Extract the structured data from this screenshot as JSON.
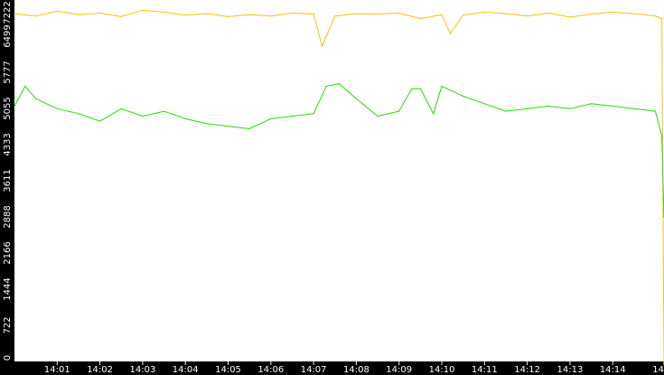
{
  "chart_data": {
    "type": "line",
    "title": "",
    "xlabel": "",
    "ylabel": "",
    "x_range_minutes": [
      0,
      15.2
    ],
    "ylim": [
      0,
      7222
    ],
    "x_ticks": [
      {
        "label": "14:01",
        "at": 1
      },
      {
        "label": "14:02",
        "at": 2
      },
      {
        "label": "14:03",
        "at": 3
      },
      {
        "label": "14:04",
        "at": 4
      },
      {
        "label": "14:05",
        "at": 5
      },
      {
        "label": "14:06",
        "at": 6
      },
      {
        "label": "14:07",
        "at": 7
      },
      {
        "label": "14:08",
        "at": 8
      },
      {
        "label": "14:09",
        "at": 9
      },
      {
        "label": "14:10",
        "at": 10
      },
      {
        "label": "14:11",
        "at": 11
      },
      {
        "label": "14:12",
        "at": 12
      },
      {
        "label": "14:13",
        "at": 13
      },
      {
        "label": "14:14",
        "at": 14
      },
      {
        "label": "14",
        "at": 15.2
      }
    ],
    "y_ticks": [
      0,
      722,
      1444,
      2166,
      2888,
      3611,
      4333,
      5055,
      5777,
      6499,
      7222
    ],
    "grid": false,
    "legend": "none",
    "series": [
      {
        "color": "#ffc000",
        "x": [
          0,
          0.5,
          1,
          1.5,
          2,
          2.5,
          3,
          3.5,
          4,
          4.5,
          5,
          5.5,
          6,
          6.5,
          7,
          7.2,
          7.5,
          8,
          8.5,
          9,
          9.5,
          10,
          10.2,
          10.5,
          11,
          11.5,
          12,
          12.5,
          13,
          13.5,
          14,
          14.5,
          15,
          15.15,
          15.2
        ],
        "y": [
          6950,
          6900,
          7000,
          6930,
          6960,
          6890,
          7020,
          6980,
          6920,
          6950,
          6890,
          6930,
          6900,
          6960,
          6940,
          6300,
          6900,
          6950,
          6940,
          6960,
          6850,
          6930,
          6550,
          6920,
          6980,
          6950,
          6900,
          6960,
          6880,
          6940,
          6980,
          6950,
          6900,
          6850,
          0
        ]
      },
      {
        "color": "#22dd00",
        "x": [
          0,
          0.25,
          0.5,
          1,
          1.5,
          2,
          2.5,
          3,
          3.5,
          4,
          4.5,
          5,
          5.5,
          6,
          6.5,
          7,
          7.3,
          7.6,
          8,
          8.5,
          9,
          9.3,
          9.5,
          9.8,
          10,
          10.5,
          11,
          11.5,
          12,
          12.5,
          13,
          13.5,
          14,
          14.5,
          15,
          15.15,
          15.2
        ],
        "y": [
          5100,
          5500,
          5250,
          5050,
          4950,
          4800,
          5050,
          4900,
          5000,
          4850,
          4750,
          4700,
          4650,
          4850,
          4900,
          4950,
          5500,
          5550,
          5250,
          4900,
          5000,
          5450,
          5450,
          4950,
          5500,
          5300,
          5150,
          5000,
          5050,
          5100,
          5050,
          5150,
          5100,
          5050,
          5000,
          4500,
          2888
        ]
      }
    ]
  }
}
